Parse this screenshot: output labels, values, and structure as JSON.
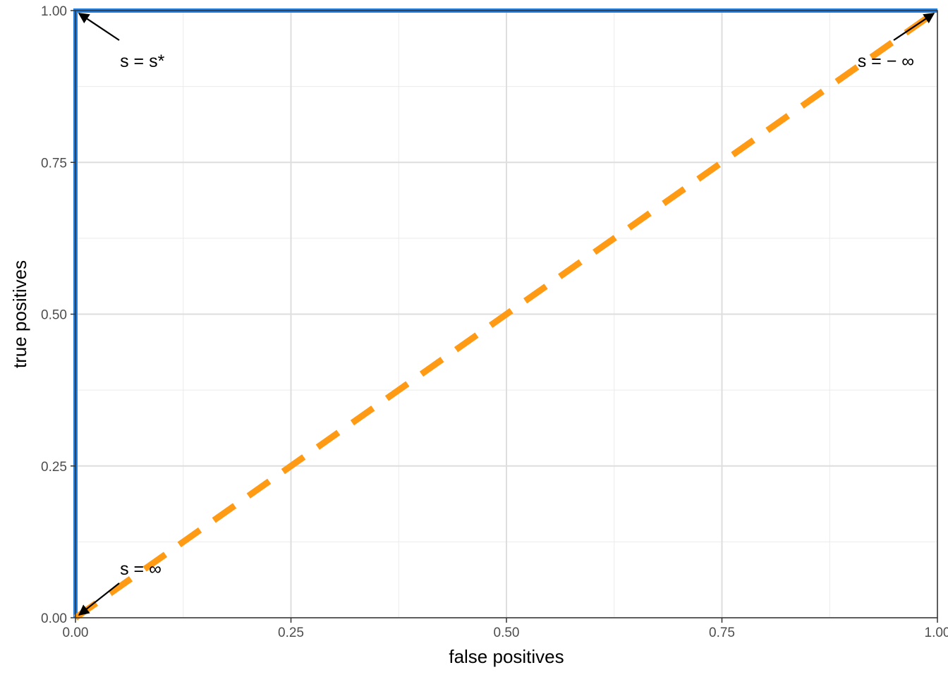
{
  "chart_data": {
    "type": "line",
    "title": "",
    "xlabel": "false positives",
    "ylabel": "true positives",
    "xlim": [
      0,
      1
    ],
    "ylim": [
      0,
      1
    ],
    "x_ticks": [
      0,
      0.25,
      0.5,
      0.75,
      1
    ],
    "y_ticks": [
      0,
      0.25,
      0.5,
      0.75,
      1
    ],
    "x_tick_labels": [
      "0.00",
      "0.25",
      "0.50",
      "0.75",
      "1.00"
    ],
    "y_tick_labels": [
      "0.00",
      "0.25",
      "0.50",
      "0.75",
      "1.00"
    ],
    "grid": true,
    "series": [
      {
        "color": "#1f7fe6",
        "style": "solid",
        "points": [
          [
            0,
            0
          ],
          [
            0,
            1
          ],
          [
            1,
            1
          ]
        ]
      },
      {
        "color": "#ff9a14",
        "style": "dashed",
        "points": [
          [
            0,
            0
          ],
          [
            1,
            1
          ]
        ]
      }
    ],
    "annotations": [
      {
        "text": "s = s*",
        "x": 0,
        "y": 1,
        "label_x": 0.05,
        "label_y": 0.92
      },
      {
        "text": "s = ∞",
        "x": 0,
        "y": 0,
        "label_x": 0.05,
        "label_y": 0.08
      },
      {
        "text": "s = − ∞",
        "x": 1,
        "y": 1,
        "label_x": 0.95,
        "label_y": 0.92
      }
    ]
  }
}
